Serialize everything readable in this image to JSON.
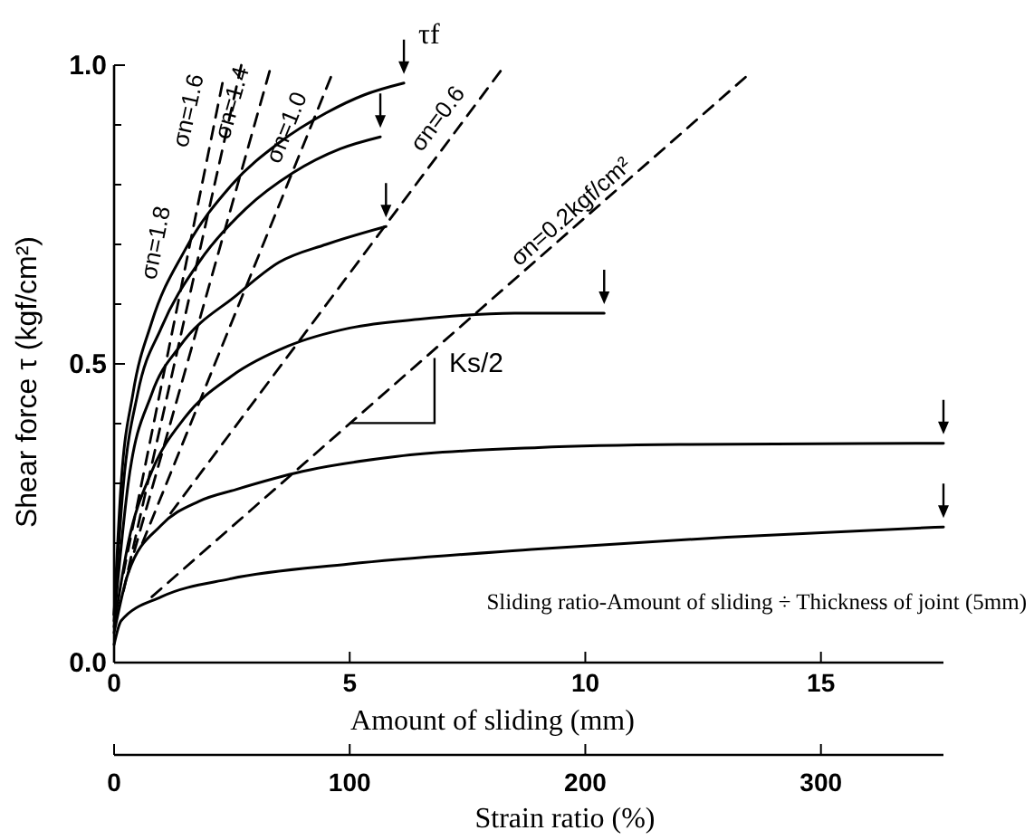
{
  "chart_data": {
    "type": "line",
    "xlabel": "Amount of sliding (mm)",
    "ylabel": "Shear force τ (kgf/cm²)",
    "x2label": "Strain ratio (%)",
    "xlim": [
      0,
      17.6
    ],
    "xticks": [
      0,
      5,
      10,
      15
    ],
    "x2lim": [
      0,
      352
    ],
    "x2ticks": [
      0,
      100,
      200,
      300
    ],
    "ylim": [
      0,
      1.0
    ],
    "yticks": [
      {
        "value": 0,
        "label": "0.0"
      },
      {
        "value": 0.1,
        "label": null
      },
      {
        "value": 0.2,
        "label": null
      },
      {
        "value": 0.3,
        "label": null
      },
      {
        "value": 0.4,
        "label": null
      },
      {
        "value": 0.5,
        "label": "0.5"
      },
      {
        "value": 0.6,
        "label": null
      },
      {
        "value": 0.7,
        "label": null
      },
      {
        "value": 0.8,
        "label": null
      },
      {
        "value": 0.9,
        "label": null
      },
      {
        "value": 1.0,
        "label": "1.0"
      }
    ],
    "marker": "none",
    "grid": false,
    "series": [
      {
        "color": "#000000",
        "line_style": "dashed",
        "x": [
          0.2,
          2.3
        ],
        "values": [
          0.15,
          0.97
        ]
      },
      {
        "color": "#000000",
        "line_style": "dashed",
        "x": [
          0.2,
          2.7
        ],
        "values": [
          0.12,
          1.0
        ]
      },
      {
        "color": "#000000",
        "line_style": "dashed",
        "x": [
          0.3,
          3.3
        ],
        "values": [
          0.15,
          0.99
        ]
      },
      {
        "color": "#000000",
        "line_style": "dashed",
        "x": [
          0.6,
          4.6
        ],
        "values": [
          0.2,
          0.98
        ]
      },
      {
        "color": "#000000",
        "line_style": "dashed",
        "x": [
          1.2,
          8.2
        ],
        "values": [
          0.25,
          0.99
        ]
      },
      {
        "color": "#000000",
        "line_style": "dashed",
        "x": [
          0.8,
          13.4
        ],
        "values": [
          0.11,
          0.98
        ]
      },
      {
        "color": "#000000",
        "line_style": "solid",
        "x": [
          0,
          0.15,
          0.4,
          0.8,
          1.5,
          2.5,
          3.5,
          4.5,
          5.3,
          6.15
        ],
        "values": [
          0.08,
          0.3,
          0.45,
          0.57,
          0.69,
          0.8,
          0.87,
          0.92,
          0.95,
          0.97
        ]
      },
      {
        "color": "#000000",
        "line_style": "solid",
        "x": [
          0,
          0.2,
          0.5,
          1,
          1.8,
          2.8,
          3.8,
          4.8,
          5.65
        ],
        "values": [
          0.08,
          0.3,
          0.45,
          0.56,
          0.67,
          0.76,
          0.82,
          0.86,
          0.88
        ]
      },
      {
        "color": "#000000",
        "line_style": "solid",
        "x": [
          0,
          0.3,
          0.8,
          1.4,
          2.6,
          3.5,
          4.5,
          5.77
        ],
        "values": [
          0.07,
          0.3,
          0.45,
          0.53,
          0.615,
          0.67,
          0.7,
          0.73
        ]
      },
      {
        "color": "#000000",
        "line_style": "solid",
        "x": [
          0,
          0.3,
          0.8,
          1.5,
          2.5,
          3.7,
          5,
          6.5,
          8.5,
          10.4
        ],
        "values": [
          0.06,
          0.2,
          0.32,
          0.41,
          0.48,
          0.53,
          0.56,
          0.575,
          0.585,
          0.585
        ]
      },
      {
        "color": "#000000",
        "line_style": "solid",
        "x": [
          0,
          0.3,
          1,
          1.8,
          2.6,
          4,
          6,
          9,
          12,
          17.6
        ],
        "values": [
          0.05,
          0.15,
          0.23,
          0.27,
          0.29,
          0.32,
          0.345,
          0.36,
          0.365,
          0.367
        ]
      },
      {
        "color": "#000000",
        "line_style": "solid",
        "x": [
          0,
          0.15,
          1,
          2.45,
          5,
          9,
          13,
          17.6
        ],
        "values": [
          0.03,
          0.07,
          0.11,
          0.14,
          0.165,
          0.19,
          0.21,
          0.227
        ]
      }
    ],
    "annotations": [
      "σn=1.8",
      "σn=1.6",
      "σn=1.4",
      "σn=1.0",
      "σn=0.6",
      "σn=0.2kgf/cm²",
      {
        "text": "τf",
        "x": 6.15,
        "y": 0.97
      },
      {
        "text": "Ks/2",
        "x": 6.8,
        "y": 0.51
      },
      "Sliding ratio-Amount of sliding ÷ Thickness of joint (5mm)"
    ]
  }
}
